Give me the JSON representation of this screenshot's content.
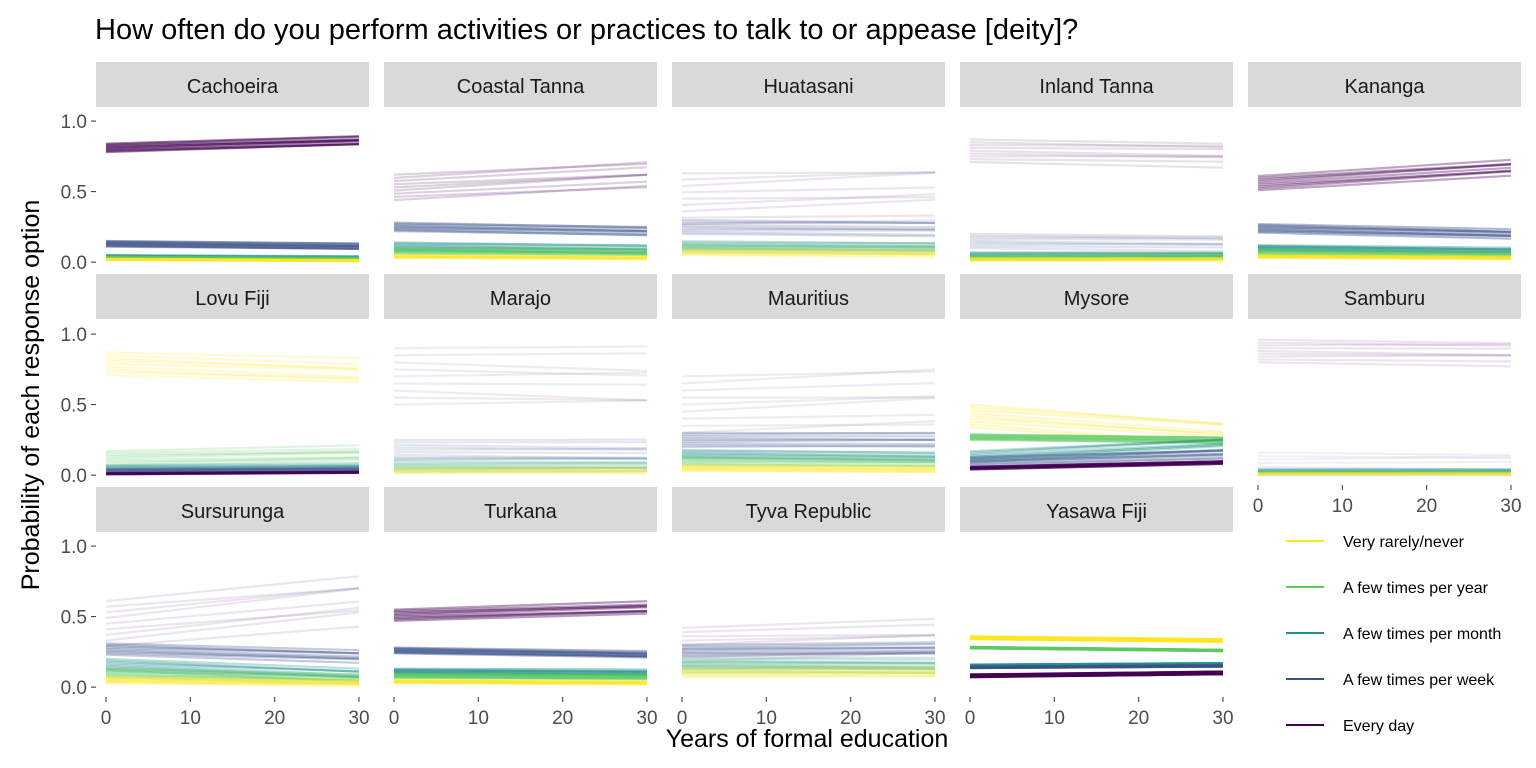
{
  "chart_data": {
    "type": "line",
    "title": "How often do you perform activities or practices to talk to or appease [deity]?",
    "xlabel": "Years of formal education",
    "ylabel": "Probability of each response option",
    "xlim": [
      0,
      30
    ],
    "ylim": [
      0,
      1
    ],
    "xticks": [
      0,
      10,
      20,
      30
    ],
    "yticks": [
      "0.0",
      "0.5",
      "1.0"
    ],
    "x": [
      0,
      30
    ],
    "legend_position": "right",
    "colors": {
      "Very rarely/never": "#FDE725",
      "A few times per year": "#5EC962",
      "A few times per month": "#21918C",
      "A few times per week": "#3B528B",
      "Every day": "#440154"
    },
    "legend": [
      "Very rarely/never",
      "A few times per year",
      "A few times per month",
      "A few times per week",
      "Every day"
    ],
    "panels": [
      {
        "name": "Cachoeira",
        "series": [
          {
            "name": "Every day",
            "values": [
              0.81,
              0.86
            ],
            "spread": 0.03,
            "alpha": 0.5
          },
          {
            "name": "A few times per week",
            "values": [
              0.13,
              0.11
            ],
            "spread": 0.02,
            "alpha": 0.5
          },
          {
            "name": "A few times per month",
            "values": [
              0.04,
              0.03
            ],
            "spread": 0.01,
            "alpha": 0.5
          },
          {
            "name": "A few times per year",
            "values": [
              0.03,
              0.02
            ],
            "spread": 0.01,
            "alpha": 0.5
          },
          {
            "name": "Very rarely/never",
            "values": [
              0.02,
              0.01
            ],
            "spread": 0.005,
            "alpha": 0.5
          }
        ]
      },
      {
        "name": "Coastal Tanna",
        "series": [
          {
            "name": "Every day",
            "values": [
              0.53,
              0.62
            ],
            "spread": 0.09,
            "alpha": 0.18
          },
          {
            "name": "A few times per week",
            "values": [
              0.25,
              0.22
            ],
            "spread": 0.03,
            "alpha": 0.35
          },
          {
            "name": "A few times per month",
            "values": [
              0.11,
              0.09
            ],
            "spread": 0.03,
            "alpha": 0.35
          },
          {
            "name": "A few times per year",
            "values": [
              0.08,
              0.07
            ],
            "spread": 0.02,
            "alpha": 0.35
          },
          {
            "name": "Very rarely/never",
            "values": [
              0.04,
              0.03
            ],
            "spread": 0.01,
            "alpha": 0.35
          }
        ]
      },
      {
        "name": "Huatasani",
        "series": [
          {
            "name": "Every day",
            "values": [
              0.45,
              0.5
            ],
            "spread": 0.18,
            "alpha": 0.1
          },
          {
            "name": "A few times per week",
            "values": [
              0.25,
              0.24
            ],
            "spread": 0.05,
            "alpha": 0.2
          },
          {
            "name": "A few times per month",
            "values": [
              0.12,
              0.11
            ],
            "spread": 0.03,
            "alpha": 0.2
          },
          {
            "name": "A few times per year",
            "values": [
              0.1,
              0.09
            ],
            "spread": 0.03,
            "alpha": 0.2
          },
          {
            "name": "Very rarely/never",
            "values": [
              0.07,
              0.06
            ],
            "spread": 0.02,
            "alpha": 0.2
          }
        ]
      },
      {
        "name": "Inland Tanna",
        "series": [
          {
            "name": "Every day",
            "values": [
              0.79,
              0.77
            ],
            "spread": 0.08,
            "alpha": 0.12
          },
          {
            "name": "A few times per week",
            "values": [
              0.15,
              0.14
            ],
            "spread": 0.05,
            "alpha": 0.15
          },
          {
            "name": "A few times per month",
            "values": [
              0.05,
              0.05
            ],
            "spread": 0.02,
            "alpha": 0.3
          },
          {
            "name": "A few times per year",
            "values": [
              0.03,
              0.04
            ],
            "spread": 0.015,
            "alpha": 0.3
          },
          {
            "name": "Very rarely/never",
            "values": [
              0.02,
              0.02
            ],
            "spread": 0.01,
            "alpha": 0.3
          }
        ]
      },
      {
        "name": "Kananga",
        "series": [
          {
            "name": "Every day",
            "values": [
              0.56,
              0.67
            ],
            "spread": 0.05,
            "alpha": 0.35
          },
          {
            "name": "A few times per week",
            "values": [
              0.24,
              0.2
            ],
            "spread": 0.03,
            "alpha": 0.4
          },
          {
            "name": "A few times per month",
            "values": [
              0.1,
              0.08
            ],
            "spread": 0.02,
            "alpha": 0.4
          },
          {
            "name": "A few times per year",
            "values": [
              0.07,
              0.05
            ],
            "spread": 0.02,
            "alpha": 0.4
          },
          {
            "name": "Very rarely/never",
            "values": [
              0.04,
              0.03
            ],
            "spread": 0.01,
            "alpha": 0.4
          }
        ]
      },
      {
        "name": "Lovu Fiji",
        "series": [
          {
            "name": "Very rarely/never",
            "values": [
              0.79,
              0.73
            ],
            "spread": 0.08,
            "alpha": 0.2
          },
          {
            "name": "A few times per year",
            "values": [
              0.12,
              0.15
            ],
            "spread": 0.05,
            "alpha": 0.2
          },
          {
            "name": "A few times per month",
            "values": [
              0.05,
              0.06
            ],
            "spread": 0.02,
            "alpha": 0.25
          },
          {
            "name": "A few times per week",
            "values": [
              0.03,
              0.04
            ],
            "spread": 0.015,
            "alpha": 0.3
          },
          {
            "name": "Every day",
            "values": [
              0.01,
              0.02
            ],
            "spread": 0.005,
            "alpha": 0.5
          }
        ]
      },
      {
        "name": "Marajo",
        "series": [
          {
            "name": "Every day",
            "values": [
              0.7,
              0.68
            ],
            "spread": 0.2,
            "alpha": 0.08
          },
          {
            "name": "A few times per week",
            "values": [
              0.18,
              0.17
            ],
            "spread": 0.07,
            "alpha": 0.14
          },
          {
            "name": "A few times per month",
            "values": [
              0.08,
              0.08
            ],
            "spread": 0.04,
            "alpha": 0.14
          },
          {
            "name": "A few times per year",
            "values": [
              0.05,
              0.05
            ],
            "spread": 0.03,
            "alpha": 0.14
          },
          {
            "name": "Very rarely/never",
            "values": [
              0.03,
              0.03
            ],
            "spread": 0.02,
            "alpha": 0.14
          }
        ]
      },
      {
        "name": "Mauritius",
        "series": [
          {
            "name": "Every day",
            "values": [
              0.5,
              0.55
            ],
            "spread": 0.2,
            "alpha": 0.08
          },
          {
            "name": "A few times per week",
            "values": [
              0.25,
              0.25
            ],
            "spread": 0.05,
            "alpha": 0.25
          },
          {
            "name": "A few times per month",
            "values": [
              0.15,
              0.13
            ],
            "spread": 0.03,
            "alpha": 0.25
          },
          {
            "name": "A few times per year",
            "values": [
              0.1,
              0.09
            ],
            "spread": 0.03,
            "alpha": 0.25
          },
          {
            "name": "Very rarely/never",
            "values": [
              0.05,
              0.04
            ],
            "spread": 0.02,
            "alpha": 0.25
          }
        ]
      },
      {
        "name": "Mysore",
        "series": [
          {
            "name": "Very rarely/never",
            "values": [
              0.42,
              0.3
            ],
            "spread": 0.08,
            "alpha": 0.25
          },
          {
            "name": "A few times per year",
            "values": [
              0.27,
              0.25
            ],
            "spread": 0.02,
            "alpha": 0.45
          },
          {
            "name": "A few times per month",
            "values": [
              0.13,
              0.22
            ],
            "spread": 0.04,
            "alpha": 0.3
          },
          {
            "name": "A few times per week",
            "values": [
              0.1,
              0.15
            ],
            "spread": 0.03,
            "alpha": 0.3
          },
          {
            "name": "Every day",
            "values": [
              0.05,
              0.09
            ],
            "spread": 0.01,
            "alpha": 0.6
          }
        ]
      },
      {
        "name": "Samburu",
        "series": [
          {
            "name": "Every day",
            "values": [
              0.88,
              0.87
            ],
            "spread": 0.08,
            "alpha": 0.1
          },
          {
            "name": "A few times per week",
            "values": [
              0.06,
              0.06
            ],
            "spread": 0.1,
            "alpha": 0.08
          },
          {
            "name": "A few times per month",
            "values": [
              0.03,
              0.03
            ],
            "spread": 0.015,
            "alpha": 0.2
          },
          {
            "name": "A few times per year",
            "values": [
              0.02,
              0.02
            ],
            "spread": 0.01,
            "alpha": 0.2
          },
          {
            "name": "Very rarely/never",
            "values": [
              0.01,
              0.01
            ],
            "spread": 0.005,
            "alpha": 0.2
          }
        ]
      },
      {
        "name": "Sursurunga",
        "series": [
          {
            "name": "Every day",
            "values": [
              0.45,
              0.62
            ],
            "spread": 0.16,
            "alpha": 0.1
          },
          {
            "name": "A few times per week",
            "values": [
              0.27,
              0.22
            ],
            "spread": 0.04,
            "alpha": 0.3
          },
          {
            "name": "A few times per month",
            "values": [
              0.16,
              0.09
            ],
            "spread": 0.04,
            "alpha": 0.3
          },
          {
            "name": "A few times per year",
            "values": [
              0.1,
              0.06
            ],
            "spread": 0.03,
            "alpha": 0.3
          },
          {
            "name": "Very rarely/never",
            "values": [
              0.05,
              0.03
            ],
            "spread": 0.02,
            "alpha": 0.3
          }
        ]
      },
      {
        "name": "Turkana",
        "series": [
          {
            "name": "Every day",
            "values": [
              0.51,
              0.56
            ],
            "spread": 0.04,
            "alpha": 0.4
          },
          {
            "name": "A few times per week",
            "values": [
              0.26,
              0.23
            ],
            "spread": 0.02,
            "alpha": 0.45
          },
          {
            "name": "A few times per month",
            "values": [
              0.11,
              0.1
            ],
            "spread": 0.02,
            "alpha": 0.45
          },
          {
            "name": "A few times per year",
            "values": [
              0.08,
              0.07
            ],
            "spread": 0.015,
            "alpha": 0.45
          },
          {
            "name": "Very rarely/never",
            "values": [
              0.04,
              0.03
            ],
            "spread": 0.01,
            "alpha": 0.45
          }
        ]
      },
      {
        "name": "Tyva Republic",
        "series": [
          {
            "name": "Every day",
            "values": [
              0.3,
              0.34
            ],
            "spread": 0.12,
            "alpha": 0.1
          },
          {
            "name": "A few times per week",
            "values": [
              0.26,
              0.27
            ],
            "spread": 0.04,
            "alpha": 0.25
          },
          {
            "name": "A few times per month",
            "values": [
              0.17,
              0.16
            ],
            "spread": 0.04,
            "alpha": 0.2
          },
          {
            "name": "A few times per year",
            "values": [
              0.14,
              0.13
            ],
            "spread": 0.04,
            "alpha": 0.2
          },
          {
            "name": "Very rarely/never",
            "values": [
              0.1,
              0.1
            ],
            "spread": 0.03,
            "alpha": 0.2
          }
        ]
      },
      {
        "name": "Yasawa Fiji",
        "series": [
          {
            "name": "Very rarely/never",
            "values": [
              0.35,
              0.33
            ],
            "spread": 0.01,
            "alpha": 0.9
          },
          {
            "name": "A few times per year",
            "values": [
              0.28,
              0.26
            ],
            "spread": 0.005,
            "alpha": 1.0
          },
          {
            "name": "A few times per month",
            "values": [
              0.15,
              0.16
            ],
            "spread": 0.01,
            "alpha": 0.9
          },
          {
            "name": "A few times per week",
            "values": [
              0.14,
              0.15
            ],
            "spread": 0.005,
            "alpha": 0.9
          },
          {
            "name": "Every day",
            "values": [
              0.08,
              0.1
            ],
            "spread": 0.01,
            "alpha": 0.9
          }
        ]
      }
    ]
  }
}
